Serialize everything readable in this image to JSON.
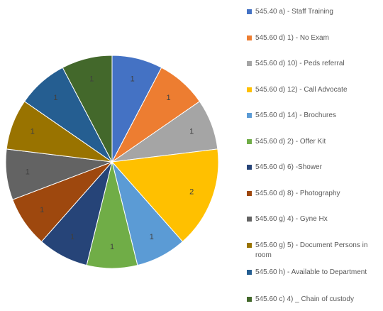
{
  "chart_data": {
    "type": "pie",
    "categories": [
      "545.40 a) - Staff Training",
      "545.60 d) 1) - No Exam",
      "545.60 d) 10) - Peds referral",
      "545.60 d) 12) - Call Advocate",
      "545.60 d) 14) - Brochures",
      "545.60 d) 2) - Offer Kit",
      "545.60 d) 6) -Shower",
      "545.60 d) 8) - Photography",
      "545.60 g) 4) - Gyne Hx",
      "545.60 g) 5) - Document Persons in room",
      "545.60 h) - Available to Department",
      "545.60 c) 4) _ Chain of custody"
    ],
    "values": [
      1,
      1,
      1,
      2,
      1,
      1,
      1,
      1,
      1,
      1,
      1,
      1
    ],
    "colors": [
      "#4472c4",
      "#ed7d31",
      "#a5a5a5",
      "#ffc000",
      "#5b9bd5",
      "#70ad47",
      "#264478",
      "#9e480e",
      "#636363",
      "#997300",
      "#255e91",
      "#43682b"
    ],
    "legend": "right"
  }
}
